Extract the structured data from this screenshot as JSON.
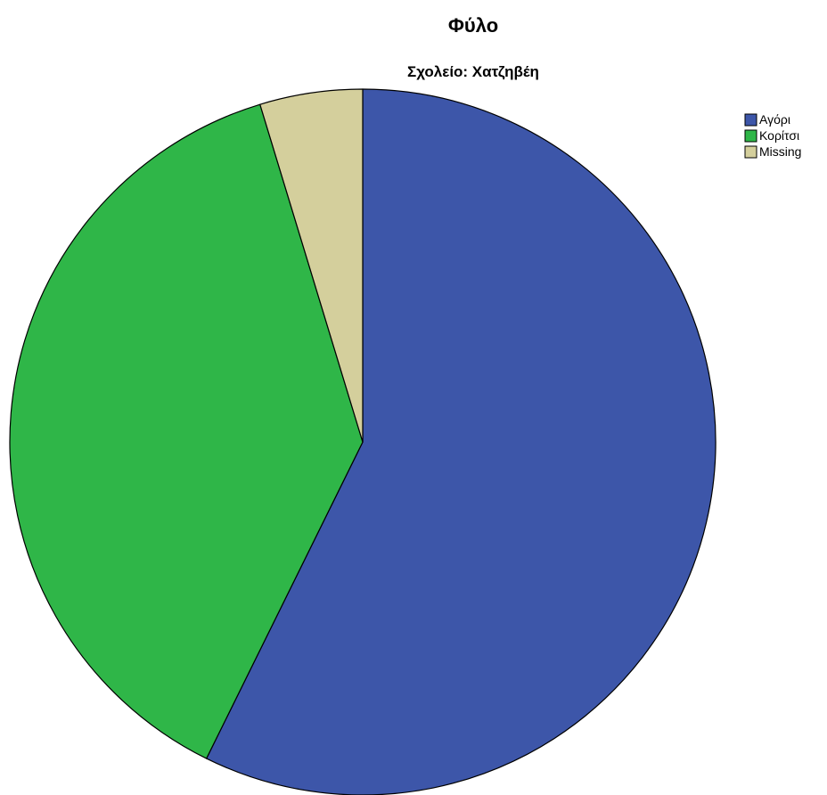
{
  "chart_data": {
    "type": "pie",
    "title": "Φύλο",
    "subtitle": "Σχολείο: Χατζηβέη",
    "categories": [
      "Αγόρι",
      "Κορίτσι",
      "Missing"
    ],
    "values": [
      57.3,
      38.0,
      4.7
    ],
    "unit": "percent",
    "colors": [
      "#3d56a9",
      "#2fb648",
      "#d4cf9c"
    ],
    "start_angle": "12 o'clock",
    "direction": "clockwise",
    "legend_position": "top-right",
    "slice_labels_shown": false
  }
}
